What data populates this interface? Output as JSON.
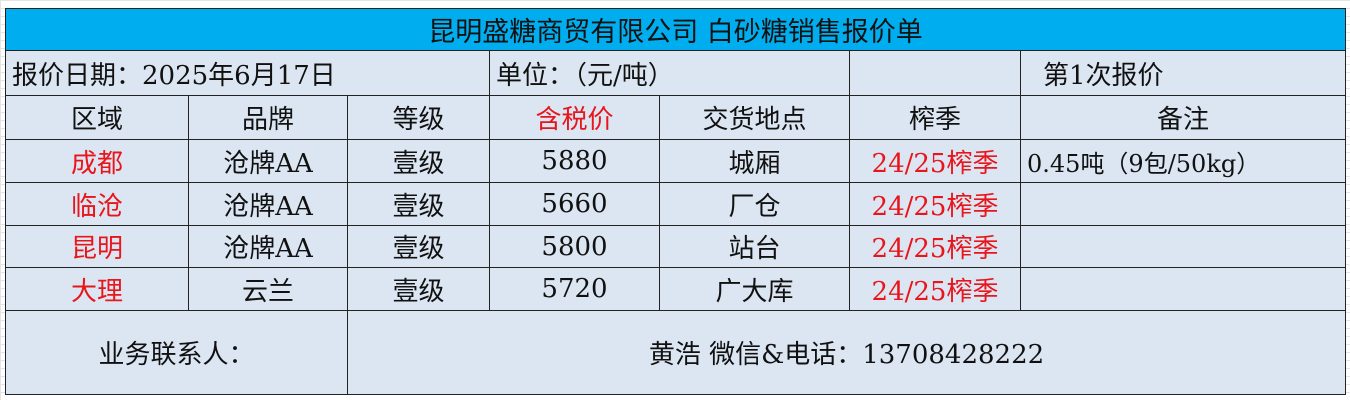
{
  "title": "昆明盛糖商贸有限公司  白砂糖销售报价单",
  "info_row": {
    "date": "报价日期：2025年6月17日",
    "unit": "单位：（元/吨）",
    "blank": "",
    "round": "第1次报价"
  },
  "headers": [
    "区域",
    "品牌",
    "等级",
    "含税价",
    "交货地点",
    "榨季",
    "备注"
  ],
  "rows": [
    {
      "region": "成都",
      "brand": "沧牌AA",
      "grade": "壹级",
      "price": "5880",
      "location": "城厢",
      "season": "24/25榨季",
      "note": "0.45吨（9包/50kg）"
    },
    {
      "region": "临沧",
      "brand": "沧牌AA",
      "grade": "壹级",
      "price": "5660",
      "location": "厂仓",
      "season": "24/25榨季",
      "note": ""
    },
    {
      "region": "昆明",
      "brand": "沧牌AA",
      "grade": "壹级",
      "price": "5800",
      "location": "站台",
      "season": "24/25榨季",
      "note": ""
    },
    {
      "region": "大理",
      "brand": "云兰",
      "grade": "壹级",
      "price": "5720",
      "location": "广大库",
      "season": "24/25榨季",
      "note": ""
    }
  ],
  "contact": {
    "label": "业务联系人：",
    "value": "黄浩  微信&电话：13708428222"
  },
  "colors": {
    "title_bg": "#00aeef",
    "cell_bg": "#dce6f2",
    "accent_red": "#e8151b"
  }
}
